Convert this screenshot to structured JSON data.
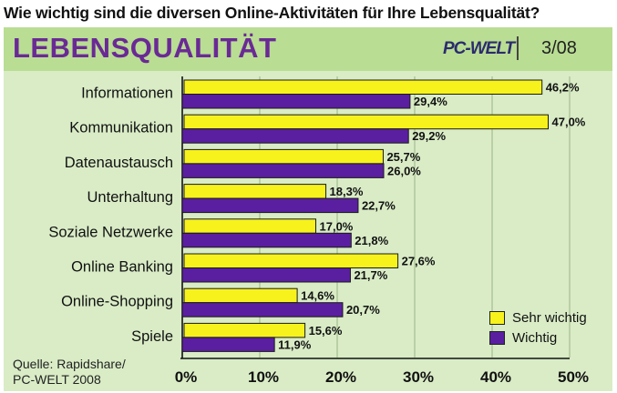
{
  "question": "Wie wichtig sind die diversen Online-Aktivitäten für Ihre Lebensqualität?",
  "banner": {
    "title": "LEBENSQUALITÄT",
    "logo": "PC-WELT",
    "issue": "3/08"
  },
  "source": {
    "line1": "Quelle: Rapidshare/",
    "line2": "PC-WELT 2008"
  },
  "colors": {
    "sehr_wichtig": "#f7f21c",
    "wichtig": "#5a1fa0",
    "banner": "#b9dd93",
    "chart_bg": "#d9ecc6",
    "title": "#6a2a95"
  },
  "chart_data": {
    "type": "bar",
    "orientation": "horizontal",
    "categories": [
      "Informationen",
      "Kommunikation",
      "Datenaustausch",
      "Unterhaltung",
      "Soziale Netzwerke",
      "Online Banking",
      "Online-Shopping",
      "Spiele"
    ],
    "series": [
      {
        "name": "Sehr wichtig",
        "values": [
          46.2,
          47.0,
          25.7,
          18.3,
          17.0,
          27.6,
          14.6,
          15.6
        ],
        "labels": [
          "46,2%",
          "47,0%",
          "25,7%",
          "18,3%",
          "17,0%",
          "27,6%",
          "14,6%",
          "15,6%"
        ]
      },
      {
        "name": "Wichtig",
        "values": [
          29.4,
          29.2,
          26.0,
          22.7,
          21.8,
          21.7,
          20.7,
          11.9
        ],
        "labels": [
          "29,4%",
          "29,2%",
          "26,0%",
          "22,7%",
          "21,8%",
          "21,7%",
          "20,7%",
          "11,9%"
        ]
      }
    ],
    "xlim": [
      0,
      50
    ],
    "ticks": [
      0,
      10,
      20,
      30,
      40,
      50
    ],
    "tick_labels": [
      "0%",
      "10%",
      "20%",
      "30%",
      "40%",
      "50%"
    ],
    "grid": true,
    "legend_position": "bottom-right"
  }
}
